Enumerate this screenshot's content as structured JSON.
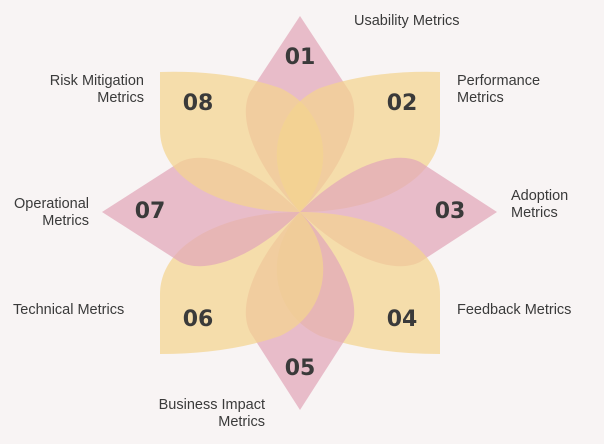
{
  "colors": {
    "background": "#f8f4f4",
    "pink_petal": "#e2a6b9",
    "yellow_petal": "#f4d48f",
    "number_text": "#3a3a3a",
    "label_text": "#3a3a3a"
  },
  "petals": [
    {
      "number": "01",
      "label": "Usability Metrics",
      "color": "pink"
    },
    {
      "number": "02",
      "label": "Performance\nMetrics",
      "color": "yellow"
    },
    {
      "number": "03",
      "label": "Adoption\nMetrics",
      "color": "pink"
    },
    {
      "number": "04",
      "label": "Feedback Metrics",
      "color": "yellow"
    },
    {
      "number": "05",
      "label": "Business Impact\nMetrics",
      "color": "pink"
    },
    {
      "number": "06",
      "label": "Technical Metrics",
      "color": "yellow"
    },
    {
      "number": "07",
      "label": "Operational\nMetrics",
      "color": "pink"
    },
    {
      "number": "08",
      "label": "Risk Mitigation\nMetrics",
      "color": "yellow"
    }
  ]
}
